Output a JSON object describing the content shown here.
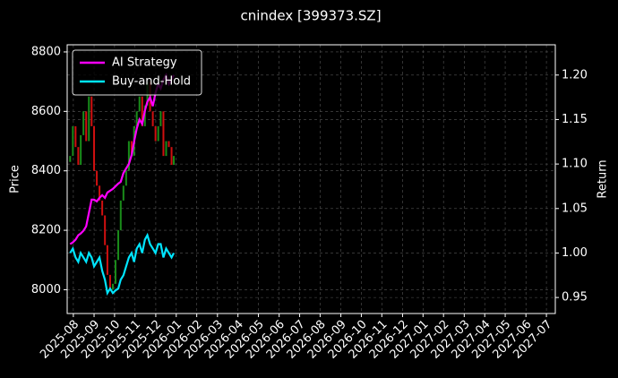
{
  "chart_data": {
    "type": "candlestick",
    "title": "cnindex [399373.SZ]",
    "ylabel": "Price",
    "y2label": "Return",
    "x": [
      2025.57,
      2025.581,
      2025.592,
      2025.603,
      2025.613,
      2025.624,
      2025.635,
      2025.646,
      2025.657,
      2025.667,
      2025.678,
      2025.689,
      2025.7,
      2025.711,
      2025.721,
      2025.732,
      2025.743,
      2025.754,
      2025.765,
      2025.775,
      2025.786,
      2025.797,
      2025.808,
      2025.819,
      2025.829,
      2025.84,
      2025.851,
      2025.862,
      2025.873,
      2025.883,
      2025.894,
      2025.905,
      2025.916,
      2025.927,
      2025.937,
      2025.948,
      2025.959,
      2025.97,
      2025.981,
      2025.99
    ],
    "open": [
      8430,
      8450,
      8550,
      8480,
      8420,
      8520,
      8600,
      8500,
      8650,
      8550,
      8400,
      8350,
      8300,
      8250,
      8150,
      8050,
      8000,
      8020,
      8100,
      8200,
      8300,
      8350,
      8400,
      8500,
      8450,
      8550,
      8600,
      8650,
      8550,
      8620,
      8700,
      8600,
      8550,
      8500,
      8550,
      8600,
      8450,
      8500,
      8480,
      8420
    ],
    "close": [
      8450,
      8550,
      8480,
      8420,
      8520,
      8600,
      8500,
      8650,
      8550,
      8400,
      8350,
      8300,
      8250,
      8150,
      8050,
      8000,
      8020,
      8100,
      8200,
      8300,
      8350,
      8400,
      8500,
      8450,
      8550,
      8600,
      8650,
      8550,
      8620,
      8700,
      8600,
      8550,
      8500,
      8550,
      8600,
      8450,
      8500,
      8480,
      8420,
      8450
    ],
    "up_color": "#1a8c1a",
    "down_color": "#d01010",
    "series": [
      {
        "name": "AI Strategy",
        "color": "#ff00ff",
        "axis": "y2",
        "values": [
          1.01,
          1.012,
          1.015,
          1.02,
          1.022,
          1.025,
          1.03,
          1.045,
          1.06,
          1.06,
          1.058,
          1.062,
          1.065,
          1.062,
          1.068,
          1.07,
          1.072,
          1.075,
          1.078,
          1.08,
          1.09,
          1.095,
          1.1,
          1.11,
          1.125,
          1.14,
          1.15,
          1.145,
          1.16,
          1.17,
          1.175,
          1.165,
          1.18,
          1.19,
          1.185,
          1.195,
          1.2,
          1.19,
          1.195,
          1.2
        ]
      },
      {
        "name": "Buy-and-Hold",
        "color": "#00e5ff",
        "axis": "y2",
        "values": [
          1.0,
          1.005,
          0.995,
          0.99,
          1.0,
          0.995,
          0.99,
          1.0,
          0.995,
          0.985,
          0.99,
          0.995,
          0.98,
          0.97,
          0.955,
          0.96,
          0.955,
          0.958,
          0.96,
          0.97,
          0.975,
          0.985,
          0.995,
          1.0,
          0.99,
          1.005,
          1.01,
          1.0,
          1.015,
          1.02,
          1.01,
          1.005,
          1.0,
          1.01,
          1.01,
          0.995,
          1.005,
          1.0,
          0.995,
          1.0
        ]
      }
    ],
    "xlim": [
      2025.558,
      2027.536
    ],
    "xticks": [
      {
        "value": 2025.583,
        "label": "2025-08"
      },
      {
        "value": 2025.667,
        "label": "2025-09"
      },
      {
        "value": 2025.75,
        "label": "2025-10"
      },
      {
        "value": 2025.833,
        "label": "2025-11"
      },
      {
        "value": 2025.917,
        "label": "2025-12"
      },
      {
        "value": 2026.0,
        "label": "2026-01"
      },
      {
        "value": 2026.083,
        "label": "2026-02"
      },
      {
        "value": 2026.167,
        "label": "2026-03"
      },
      {
        "value": 2026.25,
        "label": "2026-04"
      },
      {
        "value": 2026.333,
        "label": "2026-05"
      },
      {
        "value": 2026.417,
        "label": "2026-06"
      },
      {
        "value": 2026.5,
        "label": "2026-07"
      },
      {
        "value": 2026.583,
        "label": "2026-08"
      },
      {
        "value": 2026.667,
        "label": "2026-09"
      },
      {
        "value": 2026.75,
        "label": "2026-10"
      },
      {
        "value": 2026.833,
        "label": "2026-11"
      },
      {
        "value": 2026.917,
        "label": "2026-12"
      },
      {
        "value": 2027.0,
        "label": "2027-01"
      },
      {
        "value": 2027.083,
        "label": "2027-02"
      },
      {
        "value": 2027.167,
        "label": "2027-03"
      },
      {
        "value": 2027.25,
        "label": "2027-04"
      },
      {
        "value": 2027.333,
        "label": "2027-05"
      },
      {
        "value": 2027.417,
        "label": "2027-06"
      },
      {
        "value": 2027.5,
        "label": "2027-07"
      }
    ],
    "ylim": [
      7920,
      8824
    ],
    "yticks": [
      8000,
      8200,
      8400,
      8600,
      8800
    ],
    "y2lim": [
      0.932,
      1.234
    ],
    "y2ticks": [
      {
        "value": 0.95,
        "label": "0.95"
      },
      {
        "value": 1.0,
        "label": "1.00"
      },
      {
        "value": 1.05,
        "label": "1.05"
      },
      {
        "value": 1.1,
        "label": "1.10"
      },
      {
        "value": 1.15,
        "label": "1.15"
      },
      {
        "value": 1.2,
        "label": "1.20"
      }
    ],
    "grid": true,
    "legend": "upper left"
  }
}
